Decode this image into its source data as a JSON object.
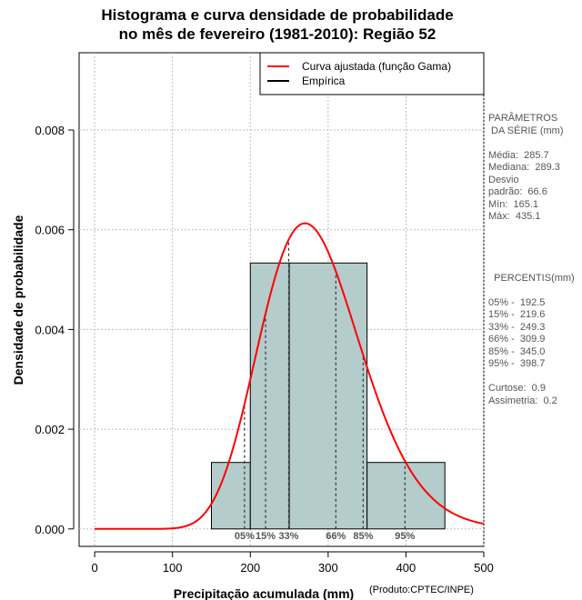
{
  "title_line1": "Histograma e curva densidade de probabilidade",
  "title_line2": "no mês de fevereiro (1981-2010): Região 52",
  "credit": "(Produto:CPTEC/INPE)",
  "legend": [
    {
      "label": "Curva ajustada (função Gama)",
      "color": "#ff0000"
    },
    {
      "label": "Empírica",
      "color": "#000000"
    }
  ],
  "series_stats": {
    "header1": "PARÂMETROS",
    "header2": " DA SÉRIE (mm)",
    "media": "Média:  285.7",
    "mediana": "Mediana:  289.3",
    "desvio1": "Desvio",
    "desvio2": "padrão:  66.6",
    "min": "Mín:  165.1",
    "max": "Máx:  435.1"
  },
  "percentiles_panel": {
    "header": "  PERCENTIS(mm)",
    "p05": "05% -  192.5",
    "p15": "15% -  219.6",
    "p33": "33% -  249.3",
    "p66": "66% -  309.9",
    "p85": "85% -  345.0",
    "p95": "95% -  398.7",
    "curtose": "Curtose:  0.9",
    "assimetria": "Assimetria:  0.2"
  },
  "chart_data": {
    "type": "bar",
    "title": "Histograma e curva densidade de probabilidade no mês de fevereiro (1981-2010): Região 52",
    "xlabel": "Precipitação acumulada (mm)",
    "ylabel": "Densidade de probabilidade",
    "xlim": [
      -20,
      500
    ],
    "ylim": [
      -0.00035,
      0.00955
    ],
    "x_ticks": [
      0,
      100,
      200,
      300,
      400,
      500
    ],
    "y_ticks": [
      0.0,
      0.002,
      0.004,
      0.006,
      0.008
    ],
    "y_tick_labels": [
      "0.000",
      "0.002",
      "0.004",
      "0.006",
      "0.008"
    ],
    "grid": true,
    "histogram": [
      {
        "from": 150,
        "to": 200,
        "density": 0.001333
      },
      {
        "from": 200,
        "to": 250,
        "density": 0.005333
      },
      {
        "from": 250,
        "to": 350,
        "density": 0.005333
      },
      {
        "from": 350,
        "to": 450,
        "density": 0.001333
      }
    ],
    "bar_color": "#b4cccc",
    "fitted_gamma": {
      "shape": 18.4,
      "scale": 15.53,
      "color": "#ff0000"
    },
    "percentile_markers": [
      {
        "label": "05%",
        "value": 192.5
      },
      {
        "label": "15%",
        "value": 219.6
      },
      {
        "label": "33%",
        "value": 249.3
      },
      {
        "label": "66%",
        "value": 309.9
      },
      {
        "label": "85%",
        "value": 345.0
      },
      {
        "label": "95%",
        "value": 398.7
      }
    ]
  }
}
